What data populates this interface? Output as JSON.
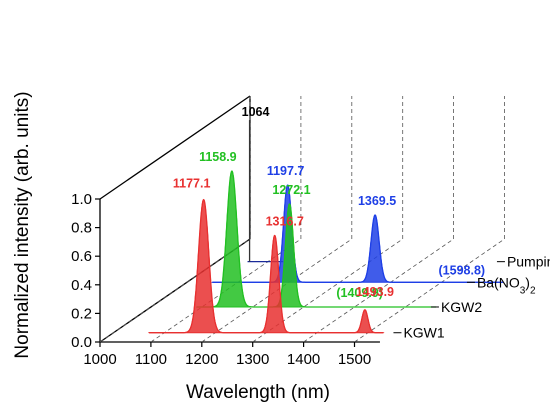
{
  "chart_data": {
    "type": "area",
    "subtype": "3d-waterfall",
    "title": "",
    "xlabel": "Wavelength (nm)",
    "ylabel": "Normalized intensity (arb. units)",
    "xlim": [
      1000,
      1550
    ],
    "ylim": [
      0,
      1.0
    ],
    "x_ticks": [
      1000,
      1100,
      1200,
      1300,
      1400,
      1500
    ],
    "y_ticks": [
      "0.0",
      "0.2",
      "0.4",
      "0.6",
      "0.8",
      "1.0"
    ],
    "grid": true,
    "series": [
      {
        "name": "KGW1",
        "color": "#e83030",
        "x_range": [
          1070,
          1530
        ],
        "peaks": [
          {
            "x": 1177.1,
            "y": 0.93,
            "width": 10,
            "label": "1177.1"
          },
          {
            "x": 1316.7,
            "y": 0.68,
            "width": 8,
            "label": "1316.7"
          },
          {
            "x": 1493.9,
            "y": 0.16,
            "width": 6,
            "label": "1493.9"
          }
        ]
      },
      {
        "name": "KGW2",
        "color": "#22c022",
        "x_range": [
          1090,
          1560
        ],
        "peaks": [
          {
            "x": 1158.9,
            "y": 0.95,
            "width": 10,
            "label": "1158.9"
          },
          {
            "x": 1272.1,
            "y": 0.72,
            "width": 8,
            "label": "1272.1"
          },
          {
            "x": 1409.9,
            "y": 0.0,
            "width": 6,
            "label": "(1409.9)"
          }
        ]
      },
      {
        "name": "Ba(NO3)2",
        "name_main": "Ba(NO",
        "name_sub": "3",
        "name_end": ")",
        "name_sub2": "2",
        "color": "#1e3fe6",
        "x_range": [
          1050,
          1620
        ],
        "peaks": [
          {
            "x": 1197.7,
            "y": 0.68,
            "width": 8,
            "label": "1197.7"
          },
          {
            "x": 1369.5,
            "y": 0.47,
            "width": 8,
            "label": "1369.5"
          },
          {
            "x": 1598.8,
            "y": 0.0,
            "width": 6,
            "label": "(1598.8)"
          }
        ]
      },
      {
        "name": "Pumping",
        "color": "#1a2a99",
        "x_range": [
          1060,
          1130
        ],
        "peaks": [
          {
            "x": 1064,
            "y": 0.99,
            "width": 0.6,
            "label": "1064"
          }
        ]
      }
    ]
  }
}
